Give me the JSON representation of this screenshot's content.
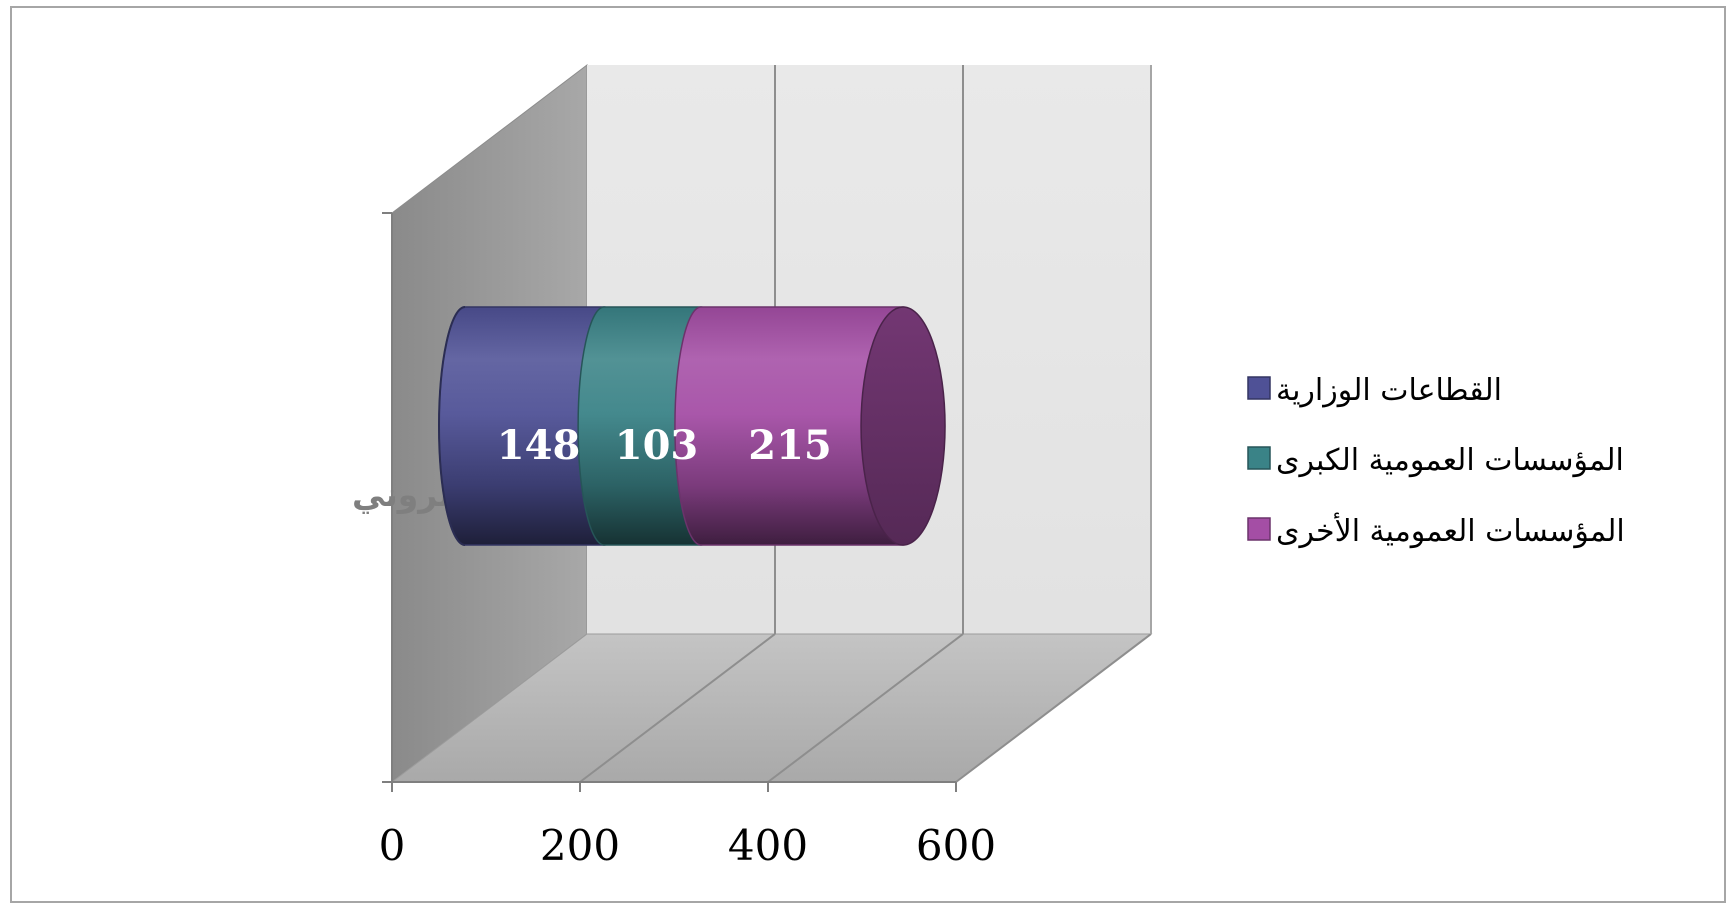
{
  "chart_data": {
    "type": "bar",
    "orientation": "horizontal",
    "stacked": true,
    "style": "3d-cylinder",
    "categories": [
      "466 موقع إلكتروني"
    ],
    "series": [
      {
        "name": "القطاعات الوزارية",
        "values": [
          148
        ],
        "color": "#4f5196"
      },
      {
        "name": "المؤسسات العمومية الكبرى",
        "values": [
          103
        ],
        "color": "#3a8387"
      },
      {
        "name": "المؤسسات العمومية الأخرى",
        "values": [
          215
        ],
        "color": "#a44ea5"
      }
    ],
    "xlim": [
      0,
      600
    ],
    "xticks": [
      "0",
      "200",
      "400",
      "600"
    ],
    "grid": true,
    "legend_position": "right"
  }
}
